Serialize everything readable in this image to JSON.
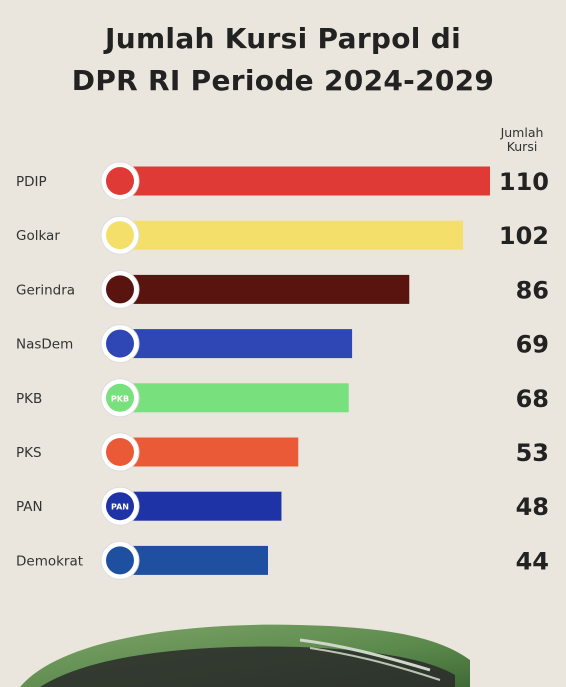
{
  "header": {
    "title_line1": "Jumlah Kursi Parpol di",
    "title_line2": "DPR RI Periode 2024-2029"
  },
  "column_header": {
    "line1": "Jumlah",
    "line2": "Kursi"
  },
  "chart_data": {
    "type": "bar",
    "orientation": "horizontal",
    "title": "Jumlah Kursi Parpol di DPR RI Periode 2024-2029",
    "value_header": "Jumlah Kursi",
    "categories": [
      "PDIP",
      "Golkar",
      "Gerindra",
      "NasDem",
      "PKB",
      "PKS",
      "PAN",
      "Demokrat"
    ],
    "values": [
      110,
      102,
      86,
      69,
      68,
      53,
      48,
      44
    ],
    "colors": [
      "#e03a36",
      "#f4df6a",
      "#5a1410",
      "#2f46b5",
      "#78e07c",
      "#eb5a36",
      "#1d33a6",
      "#1f4fa0"
    ],
    "logo_icons": [
      "pdip-bull-icon",
      "golkar-banyan-icon",
      "gerindra-garuda-icon",
      "nasdem-icon",
      "pkb-icon",
      "pks-icon",
      "pan-sun-icon",
      "demokrat-mercy-icon"
    ],
    "logo_texts": [
      "",
      "",
      "",
      "",
      "PKB",
      "",
      "PAN",
      ""
    ],
    "grid": false,
    "legend": "none"
  },
  "background_icon": "parliament-dome-icon"
}
